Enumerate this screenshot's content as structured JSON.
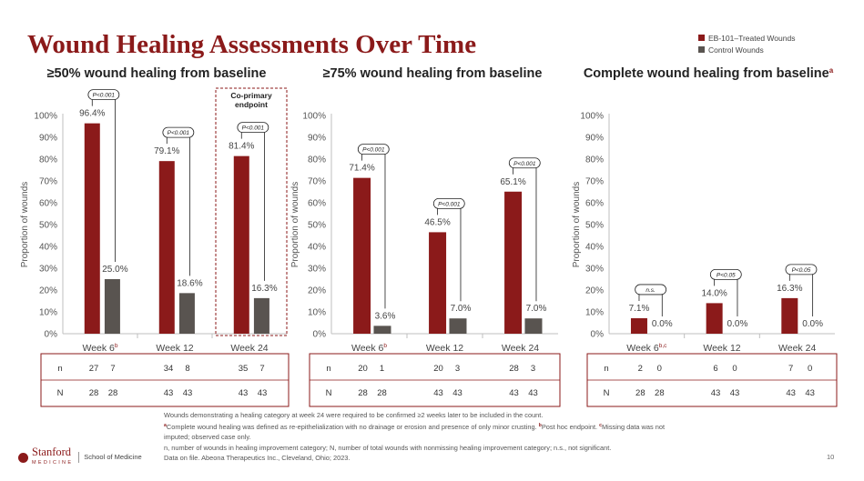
{
  "title": "Wound Healing Assessments Over Time",
  "page_number": "10",
  "legend": [
    {
      "label": "EB-101–Treated Wounds",
      "color": "#8b1a1a"
    },
    {
      "label": "Control Wounds",
      "color": "#595450"
    }
  ],
  "colors": {
    "treated": "#8b1a1a",
    "control": "#595450",
    "title": "#8b1a1a"
  },
  "chart_data": [
    {
      "type": "bar",
      "title": "≥50% wound healing from baseline",
      "title_sup": "",
      "ylabel": "Proportion of wounds",
      "ylim": [
        0,
        100
      ],
      "yticks": [
        "0%",
        "10%",
        "20%",
        "30%",
        "40%",
        "50%",
        "60%",
        "70%",
        "80%",
        "90%",
        "100%"
      ],
      "categories": [
        "Week 6",
        "Week 12",
        "Week 24"
      ],
      "category_sups": [
        "b",
        "",
        ""
      ],
      "series": [
        {
          "name": "EB-101–Treated Wounds",
          "values": [
            96.4,
            79.1,
            81.4
          ],
          "labels": [
            "96.4%",
            "79.1%",
            "81.4%"
          ]
        },
        {
          "name": "Control Wounds",
          "values": [
            25.0,
            18.6,
            16.3
          ],
          "labels": [
            "25.0%",
            "18.6%",
            "16.3%"
          ]
        }
      ],
      "pvalues": [
        "P<0.001",
        "P<0.001",
        "P<0.001"
      ],
      "highlight": {
        "category_index": 2,
        "label_lines": [
          "Co-primary",
          "endpoint"
        ]
      },
      "table": {
        "n": [
          [
            "27",
            "7"
          ],
          [
            "34",
            "8"
          ],
          [
            "35",
            "7"
          ]
        ],
        "N": [
          [
            "28",
            "28"
          ],
          [
            "43",
            "43"
          ],
          [
            "43",
            "43"
          ]
        ]
      }
    },
    {
      "type": "bar",
      "title": "≥75% wound healing from baseline",
      "title_sup": "",
      "ylabel": "Proportion of wounds",
      "ylim": [
        0,
        100
      ],
      "yticks": [
        "0%",
        "10%",
        "20%",
        "30%",
        "40%",
        "50%",
        "60%",
        "70%",
        "80%",
        "90%",
        "100%"
      ],
      "categories": [
        "Week 6",
        "Week 12",
        "Week 24"
      ],
      "category_sups": [
        "b",
        "",
        ""
      ],
      "series": [
        {
          "name": "EB-101–Treated Wounds",
          "values": [
            71.4,
            46.5,
            65.1
          ],
          "labels": [
            "71.4%",
            "46.5%",
            "65.1%"
          ]
        },
        {
          "name": "Control Wounds",
          "values": [
            3.6,
            7.0,
            7.0
          ],
          "labels": [
            "3.6%",
            "7.0%",
            "7.0%"
          ]
        }
      ],
      "pvalues": [
        "P<0.001",
        "P<0.001",
        "P<0.001"
      ],
      "table": {
        "n": [
          [
            "20",
            "1"
          ],
          [
            "20",
            "3"
          ],
          [
            "28",
            "3"
          ]
        ],
        "N": [
          [
            "28",
            "28"
          ],
          [
            "43",
            "43"
          ],
          [
            "43",
            "43"
          ]
        ]
      }
    },
    {
      "type": "bar",
      "title": "Complete wound healing from baseline",
      "title_sup": "a",
      "ylabel": "Proportion of wounds",
      "ylim": [
        0,
        100
      ],
      "yticks": [
        "0%",
        "10%",
        "20%",
        "30%",
        "40%",
        "50%",
        "60%",
        "70%",
        "80%",
        "90%",
        "100%"
      ],
      "categories": [
        "Week 6",
        "Week 12",
        "Week 24"
      ],
      "category_sups": [
        "b,c",
        "",
        ""
      ],
      "series": [
        {
          "name": "EB-101–Treated Wounds",
          "values": [
            7.1,
            14.0,
            16.3
          ],
          "labels": [
            "7.1%",
            "14.0%",
            "16.3%"
          ]
        },
        {
          "name": "Control Wounds",
          "values": [
            0.0,
            0.0,
            0.0
          ],
          "labels": [
            "0.0%",
            "0.0%",
            "0.0%"
          ]
        }
      ],
      "pvalues": [
        "n.s.",
        "P<0.05",
        "P<0.05"
      ],
      "table": {
        "n": [
          [
            "2",
            "0"
          ],
          [
            "6",
            "0"
          ],
          [
            "7",
            "0"
          ]
        ],
        "N": [
          [
            "28",
            "28"
          ],
          [
            "43",
            "43"
          ],
          [
            "43",
            "43"
          ]
        ]
      }
    }
  ],
  "table_row_labels": [
    "n",
    "N"
  ],
  "footnotes": {
    "line1": "Wounds demonstrating a healing category at week 24 were required to be confirmed ≥2 weeks later to be included in the count.",
    "line2a_sup": "a",
    "line2a": "Complete wound healing was defined as re-epithelialization with no drainage or erosion and presence of only minor crusting. ",
    "line2b_sup": "b",
    "line2b": "Post hoc endpoint. ",
    "line2c_sup": "c",
    "line2c": "Missing data was not",
    "line3": "imputed; observed case only.",
    "line4": "n, number of wounds in healing improvement category; N, number of total wounds with nonmissing healing improvement category; n.s., not significant.",
    "line5": "Data on file. Abeona Therapeutics Inc., Cleveland, Ohio; 2023."
  },
  "footer": {
    "logo_text": "Stanford",
    "logo_sub": "MEDICINE",
    "school": "School of Medicine"
  }
}
